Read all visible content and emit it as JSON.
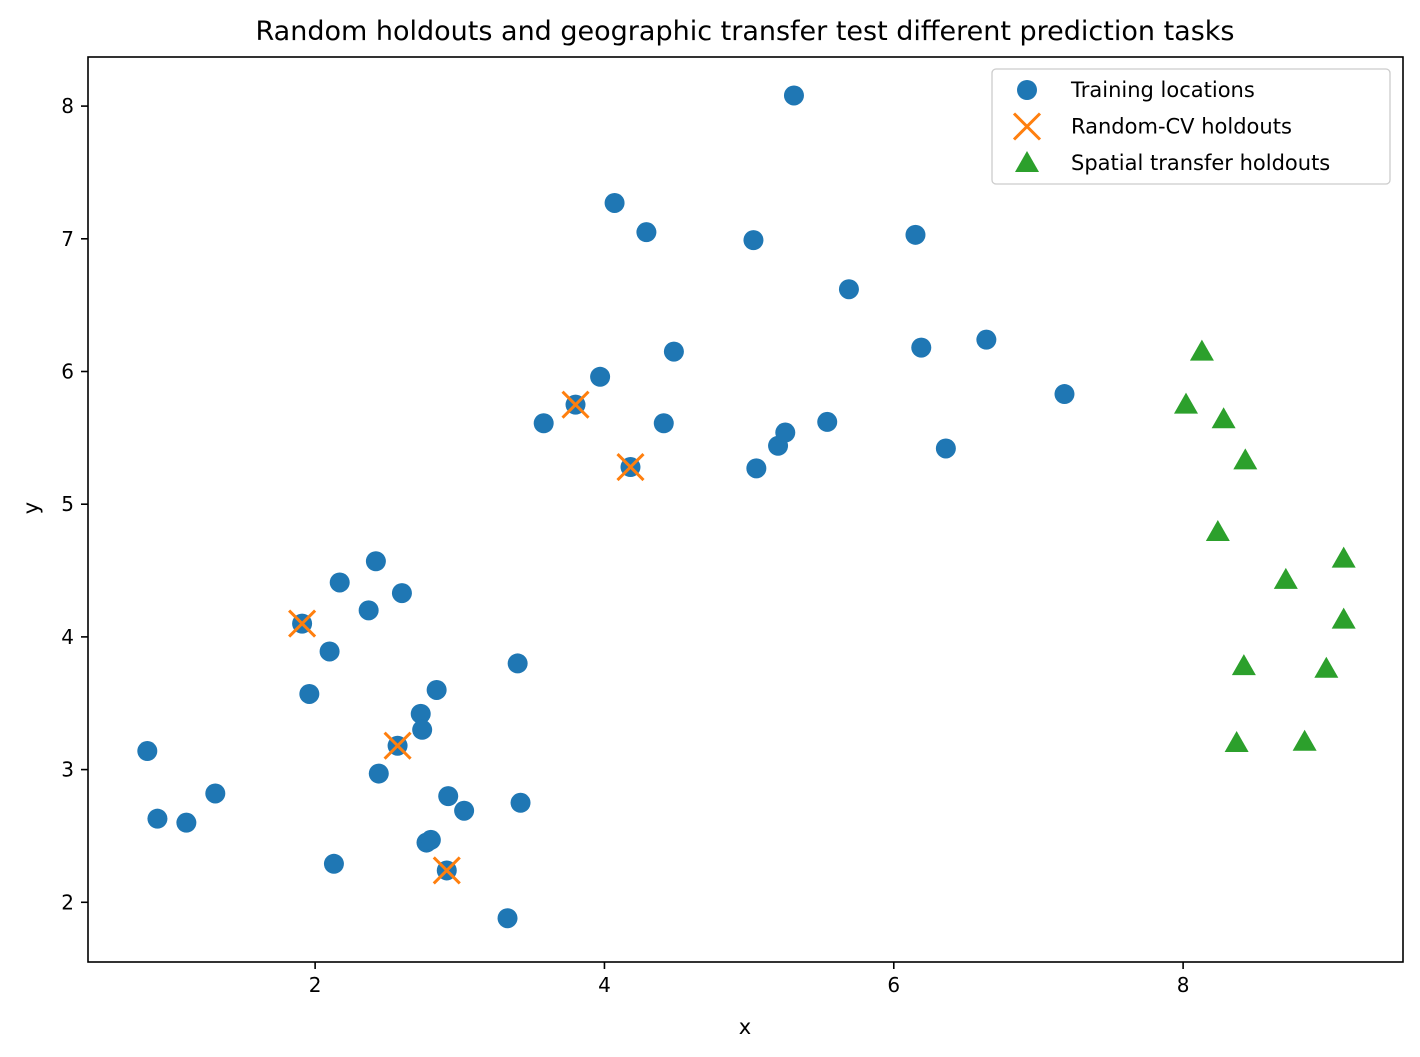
{
  "chart_data": {
    "type": "scatter",
    "title": "Random holdouts and geographic transfer test different prediction tasks",
    "xlabel": "x",
    "ylabel": "y",
    "xlim": [
      0.43,
      9.52
    ],
    "ylim": [
      1.55,
      8.37
    ],
    "xticks": [
      2,
      4,
      6,
      8
    ],
    "yticks": [
      2,
      3,
      4,
      5,
      6,
      7,
      8
    ],
    "grid": false,
    "legend_position": "top-right",
    "series": [
      {
        "name": "Training locations",
        "marker": "circle",
        "color": "#1f77b4",
        "points": [
          [
            0.84,
            3.14
          ],
          [
            0.91,
            2.63
          ],
          [
            1.11,
            2.6
          ],
          [
            1.31,
            2.82
          ],
          [
            1.91,
            4.1
          ],
          [
            1.96,
            3.57
          ],
          [
            2.1,
            3.89
          ],
          [
            2.13,
            2.29
          ],
          [
            2.17,
            4.41
          ],
          [
            2.37,
            4.2
          ],
          [
            2.42,
            4.57
          ],
          [
            2.44,
            2.97
          ],
          [
            2.57,
            3.18
          ],
          [
            2.6,
            4.33
          ],
          [
            2.73,
            3.42
          ],
          [
            2.74,
            3.3
          ],
          [
            2.77,
            2.45
          ],
          [
            2.8,
            2.47
          ],
          [
            2.84,
            3.6
          ],
          [
            2.91,
            2.24
          ],
          [
            2.92,
            2.8
          ],
          [
            3.03,
            2.69
          ],
          [
            3.33,
            1.88
          ],
          [
            3.4,
            3.8
          ],
          [
            3.42,
            2.75
          ],
          [
            3.58,
            5.61
          ],
          [
            3.8,
            5.75
          ],
          [
            3.97,
            5.96
          ],
          [
            4.07,
            7.27
          ],
          [
            4.18,
            5.28
          ],
          [
            4.29,
            7.05
          ],
          [
            4.41,
            5.61
          ],
          [
            4.48,
            6.15
          ],
          [
            5.03,
            6.99
          ],
          [
            5.05,
            5.27
          ],
          [
            5.2,
            5.44
          ],
          [
            5.25,
            5.54
          ],
          [
            5.31,
            8.08
          ],
          [
            5.54,
            5.62
          ],
          [
            5.69,
            6.62
          ],
          [
            6.15,
            7.03
          ],
          [
            6.19,
            6.18
          ],
          [
            6.36,
            5.42
          ],
          [
            6.64,
            6.24
          ],
          [
            7.18,
            5.83
          ]
        ]
      },
      {
        "name": "Random-CV holdouts",
        "marker": "x",
        "color": "#ff7f0e",
        "points": [
          [
            1.91,
            4.1
          ],
          [
            2.57,
            3.18
          ],
          [
            2.91,
            2.24
          ],
          [
            3.8,
            5.75
          ],
          [
            4.18,
            5.28
          ]
        ]
      },
      {
        "name": "Spatial transfer holdouts",
        "marker": "triangle",
        "color": "#2ca02c",
        "points": [
          [
            8.02,
            5.75
          ],
          [
            8.13,
            6.15
          ],
          [
            8.24,
            4.79
          ],
          [
            8.28,
            5.64
          ],
          [
            8.37,
            3.2
          ],
          [
            8.42,
            3.78
          ],
          [
            8.43,
            5.33
          ],
          [
            8.71,
            4.43
          ],
          [
            8.84,
            3.21
          ],
          [
            8.99,
            3.76
          ],
          [
            9.11,
            4.59
          ],
          [
            9.11,
            4.13
          ]
        ]
      }
    ]
  }
}
